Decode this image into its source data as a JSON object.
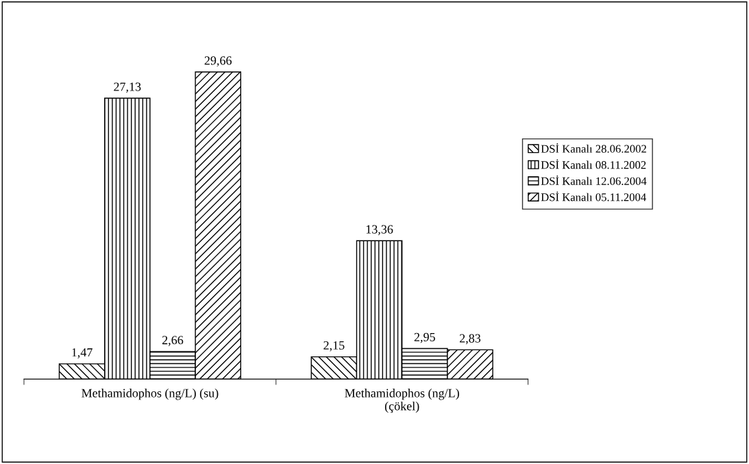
{
  "chart_data": {
    "type": "bar",
    "categories": [
      "Methamidophos (ng/L) (su)",
      "Methamidophos (ng/L)\n(çökel)"
    ],
    "series": [
      {
        "name": "DSİ Kanalı 28.06.2002",
        "color": "#000000",
        "values": [
          1.47,
          2.15
        ],
        "value_labels": [
          "1,47",
          "2,15"
        ]
      },
      {
        "name": "DSİ Kanalı 08.11.2002",
        "color": "#000000",
        "values": [
          27.13,
          13.36
        ],
        "value_labels": [
          "27,13",
          "13,36"
        ]
      },
      {
        "name": "DSİ Kanalı 12.06.2004",
        "color": "#000000",
        "values": [
          2.66,
          2.95
        ],
        "value_labels": [
          "2,66",
          "2,95"
        ]
      },
      {
        "name": "DSİ Kanalı 05.11.2004",
        "color": "#000000",
        "values": [
          29.66,
          2.83
        ],
        "value_labels": [
          "29,66",
          "2,83"
        ]
      }
    ],
    "legend": "right",
    "grid": false
  }
}
